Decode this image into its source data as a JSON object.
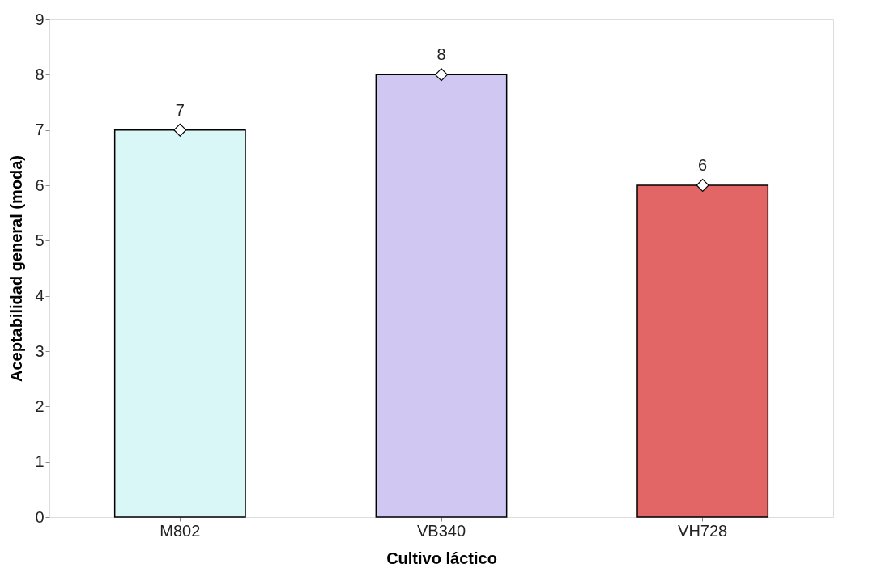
{
  "chart_data": {
    "type": "bar",
    "xlabel": "Cultivo láctico",
    "ylabel": "Aceptabilidad general (moda)",
    "categories": [
      "M802",
      "VB340",
      "VH728"
    ],
    "series": [
      {
        "values": [
          7,
          8,
          6
        ],
        "colors": [
          "#d9f7f7",
          "#d0c8f2",
          "#e26666"
        ]
      },
      {
        "type": "scatter",
        "x": [
          "M802",
          "VB340",
          "VH728"
        ],
        "values": [
          7,
          8,
          6
        ],
        "value_labels": [
          "7",
          "8",
          "6"
        ],
        "color": "#ffffff"
      }
    ],
    "marker": "diamond",
    "ylim": [
      0,
      9
    ],
    "yticks": [
      0,
      1,
      2,
      3,
      4,
      5,
      6,
      7,
      8,
      9
    ],
    "grid": false
  }
}
